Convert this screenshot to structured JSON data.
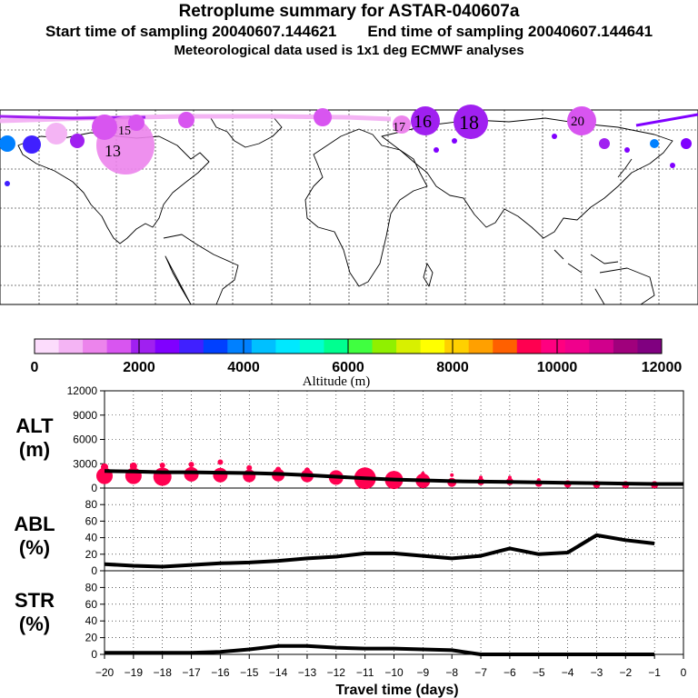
{
  "header": {
    "title": "Retroplume summary for ASTAR-040607a",
    "start_label": "Start time of sampling 20040607.144621",
    "end_label": "End time of sampling 20040607.144641",
    "met_label": "Meteorological data used is 1x1 deg ECMWF analyses"
  },
  "map": {
    "plume_labels": [
      "13",
      "15",
      "16",
      "17",
      "18",
      "20"
    ]
  },
  "colorbar": {
    "label": "Altitude (m)",
    "ticks": [
      "0",
      "2000",
      "4000",
      "6000",
      "8000",
      "10000",
      "12000"
    ],
    "colors": [
      "#fcdcfc",
      "#f4b4f4",
      "#ec84ec",
      "#d855f0",
      "#a020f0",
      "#8000ff",
      "#4020ff",
      "#0040ff",
      "#0080ff",
      "#00c0ff",
      "#00e8ff",
      "#00ffd0",
      "#00ff90",
      "#40ff40",
      "#90f000",
      "#d8f000",
      "#ffff00",
      "#ffd000",
      "#ffa000",
      "#ff6000",
      "#ff0050",
      "#ff0080",
      "#f0008c",
      "#d0008c",
      "#a0007c",
      "#800080"
    ]
  },
  "chart_data": [
    {
      "type": "line",
      "name": "ALT",
      "ylabel": "ALT (m)",
      "ylabel_lines": [
        "ALT",
        "(m)"
      ],
      "ylim": [
        0,
        12000
      ],
      "yticks": [
        0,
        3000,
        6000,
        9000,
        12000
      ],
      "ytick_labels": [
        "0",
        "3000",
        "6000",
        "9000",
        "12000"
      ],
      "x": [
        -20,
        -19,
        -18,
        -17,
        -16,
        -15,
        -14,
        -13,
        -12,
        -11,
        -10,
        -9,
        -8,
        -7,
        -6,
        -5,
        -4,
        -3,
        -2,
        -1,
        0
      ],
      "values": [
        2100,
        2050,
        1950,
        1950,
        1900,
        1850,
        1750,
        1600,
        1400,
        1200,
        1050,
        950,
        850,
        800,
        750,
        700,
        650,
        600,
        550,
        500,
        500
      ],
      "scatter": [
        {
          "x": -20,
          "y": 1500,
          "r": 9
        },
        {
          "x": -20,
          "y": 2600,
          "r": 4
        },
        {
          "x": -19,
          "y": 1500,
          "r": 9
        },
        {
          "x": -19,
          "y": 2700,
          "r": 4
        },
        {
          "x": -18,
          "y": 1400,
          "r": 10
        },
        {
          "x": -18,
          "y": 2800,
          "r": 3
        },
        {
          "x": -17,
          "y": 1700,
          "r": 8
        },
        {
          "x": -17,
          "y": 2900,
          "r": 3
        },
        {
          "x": -16,
          "y": 1600,
          "r": 8
        },
        {
          "x": -16,
          "y": 3200,
          "r": 3
        },
        {
          "x": -15,
          "y": 1500,
          "r": 7
        },
        {
          "x": -15,
          "y": 2500,
          "r": 3
        },
        {
          "x": -14,
          "y": 1600,
          "r": 7
        },
        {
          "x": -14,
          "y": 2300,
          "r": 3
        },
        {
          "x": -13,
          "y": 1500,
          "r": 7
        },
        {
          "x": -13,
          "y": 2200,
          "r": 3
        },
        {
          "x": -12,
          "y": 1300,
          "r": 8
        },
        {
          "x": -11,
          "y": 1200,
          "r": 12
        },
        {
          "x": -10,
          "y": 1000,
          "r": 10
        },
        {
          "x": -9,
          "y": 900,
          "r": 8
        },
        {
          "x": -9,
          "y": 1800,
          "r": 2
        },
        {
          "x": -8,
          "y": 700,
          "r": 5
        },
        {
          "x": -8,
          "y": 1600,
          "r": 2
        },
        {
          "x": -7,
          "y": 800,
          "r": 4
        },
        {
          "x": -7,
          "y": 1300,
          "r": 2
        },
        {
          "x": -6,
          "y": 800,
          "r": 4
        },
        {
          "x": -6,
          "y": 1300,
          "r": 2
        },
        {
          "x": -5,
          "y": 600,
          "r": 4
        },
        {
          "x": -5,
          "y": 1000,
          "r": 2
        },
        {
          "x": -4,
          "y": 500,
          "r": 4
        },
        {
          "x": -3,
          "y": 450,
          "r": 4
        },
        {
          "x": -2,
          "y": 400,
          "r": 4
        },
        {
          "x": -1,
          "y": 400,
          "r": 4
        }
      ]
    },
    {
      "type": "line",
      "name": "ABL",
      "ylabel": "ABL (%)",
      "ylabel_lines": [
        "ABL",
        "(%)"
      ],
      "ylim": [
        0,
        100
      ],
      "yticks": [
        0,
        20,
        40,
        60,
        80
      ],
      "ytick_labels": [
        "0",
        "20",
        "40",
        "60",
        "80"
      ],
      "x": [
        -20,
        -19,
        -18,
        -17,
        -16,
        -15,
        -14,
        -13,
        -12,
        -11,
        -10,
        -9,
        -8,
        -7,
        -6,
        -5,
        -4,
        -3,
        -2,
        -1
      ],
      "values": [
        8,
        6,
        5,
        7,
        9,
        10,
        12,
        15,
        17,
        21,
        21,
        18,
        15,
        18,
        27,
        20,
        22,
        43,
        37,
        33
      ]
    },
    {
      "type": "line",
      "name": "STR",
      "ylabel": "STR (%)",
      "ylabel_lines": [
        "STR",
        "(%)"
      ],
      "ylim": [
        0,
        100
      ],
      "yticks": [
        0,
        20,
        40,
        60,
        80
      ],
      "ytick_labels": [
        "0",
        "20",
        "40",
        "60",
        "80"
      ],
      "x": [
        -20,
        -19,
        -18,
        -17,
        -16,
        -15,
        -14,
        -13,
        -12,
        -11,
        -10,
        -9,
        -8,
        -7,
        -6,
        -5,
        -4,
        -3,
        -2,
        -1
      ],
      "values": [
        2,
        2,
        2,
        2,
        3,
        6,
        10,
        10,
        8,
        7,
        7,
        6,
        5,
        0,
        0,
        0,
        0,
        0,
        0,
        0
      ]
    }
  ],
  "xaxis": {
    "xlabel": "Travel time (days)",
    "ticks": [
      -20,
      -19,
      -18,
      -17,
      -16,
      -15,
      -14,
      -13,
      -12,
      -11,
      -10,
      -9,
      -8,
      -7,
      -6,
      -5,
      -4,
      -3,
      -2,
      -1,
      0
    ],
    "tick_labels": [
      "−20",
      "−19",
      "−18",
      "−17",
      "−16",
      "−15",
      "−14",
      "−13",
      "−12",
      "−11",
      "−10",
      "−9",
      "−8",
      "−7",
      "−6",
      "−5",
      "−4",
      "−3",
      "−2",
      "−1",
      "0"
    ]
  }
}
